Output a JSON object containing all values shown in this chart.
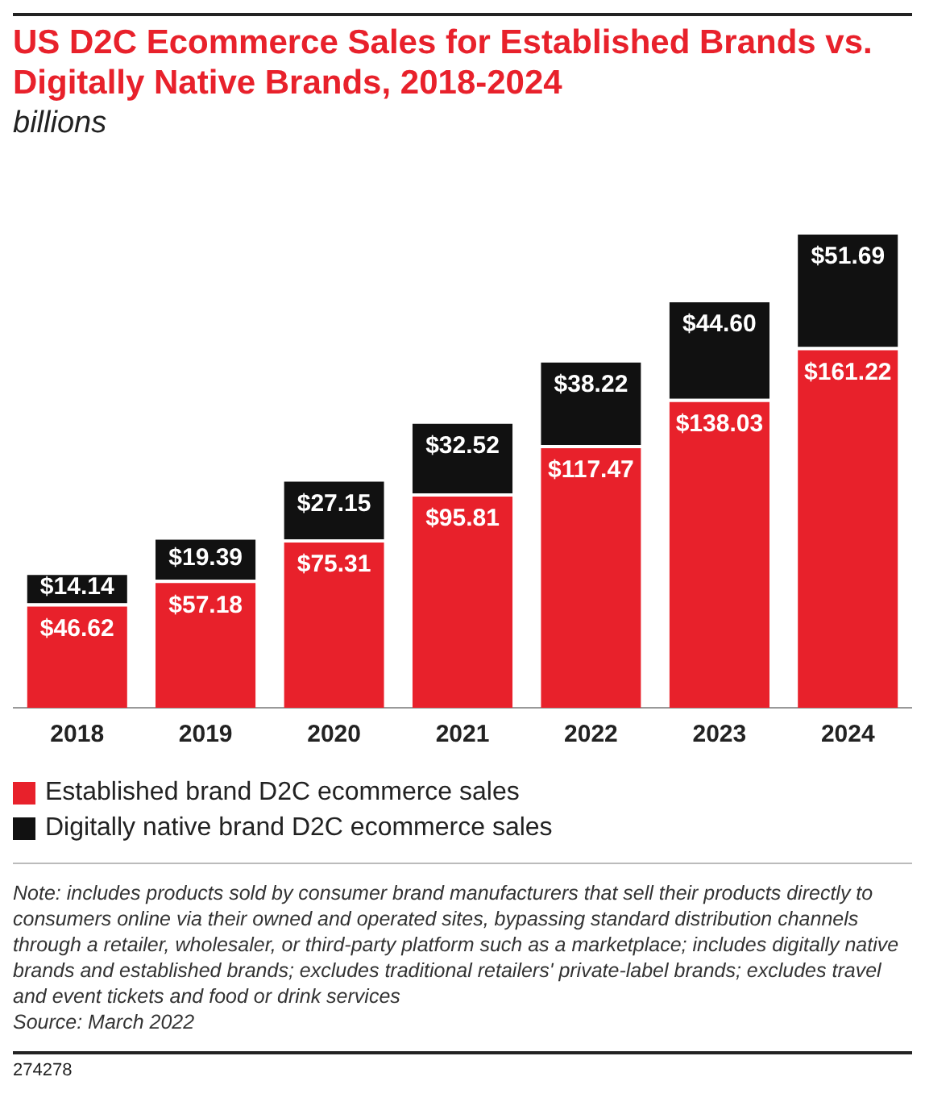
{
  "chart_data": {
    "type": "bar",
    "title": "US D2C Ecommerce Sales for Established Brands vs. Digitally Native Brands, 2018-2024",
    "subtitle": "billions",
    "categories": [
      "2018",
      "2019",
      "2020",
      "2021",
      "2022",
      "2023",
      "2024"
    ],
    "stacked": true,
    "legend": "bottom",
    "grid": false,
    "series": [
      {
        "name": "Established brand D2C ecommerce sales",
        "color": "#e8212b",
        "values": [
          46.62,
          57.18,
          75.31,
          95.81,
          117.47,
          138.03,
          161.22
        ],
        "value_labels": [
          "$46.62",
          "$57.18",
          "$75.31",
          "$95.81",
          "$117.47",
          "$138.03",
          "$161.22"
        ]
      },
      {
        "name": "Digitally native brand D2C ecommerce sales",
        "color": "#111111",
        "values": [
          14.14,
          19.39,
          27.15,
          32.52,
          38.22,
          44.6,
          51.69
        ],
        "value_labels": [
          "$14.14",
          "$19.39",
          "$27.15",
          "$32.52",
          "$38.22",
          "$44.60",
          "$51.69"
        ]
      }
    ],
    "annotations": [
      "Note: includes products sold by consumer brand manufacturers that sell their products directly to consumers online via their owned and operated sites, bypassing standard distribution channels through a retailer, wholesaler, or third-party platform such as a marketplace; includes digitally native brands and established brands; excludes traditional retailers' private-label brands; excludes travel and event tickets and food or drink services",
      "Source: March 2022",
      "274278"
    ]
  }
}
